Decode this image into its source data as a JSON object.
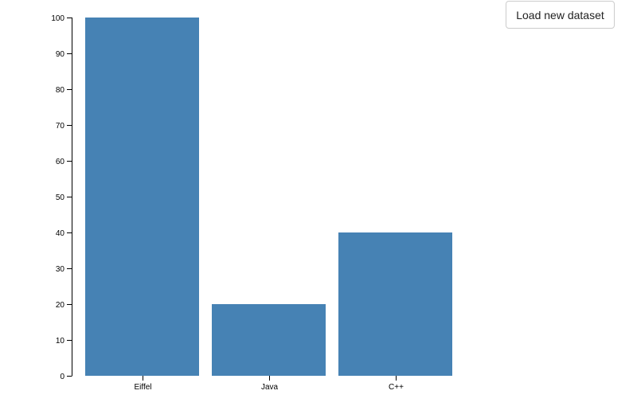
{
  "button": {
    "load_label": "Load new dataset"
  },
  "chart_data": {
    "type": "bar",
    "categories": [
      "Eiffel",
      "Java",
      "C++"
    ],
    "values": [
      100,
      20,
      40
    ],
    "ylim": [
      0,
      100
    ],
    "yticks": [
      0,
      10,
      20,
      30,
      40,
      50,
      60,
      70,
      80,
      90,
      100
    ],
    "title": "",
    "xlabel": "",
    "ylabel": "",
    "grid": false,
    "bar_color": "#4682b4"
  }
}
